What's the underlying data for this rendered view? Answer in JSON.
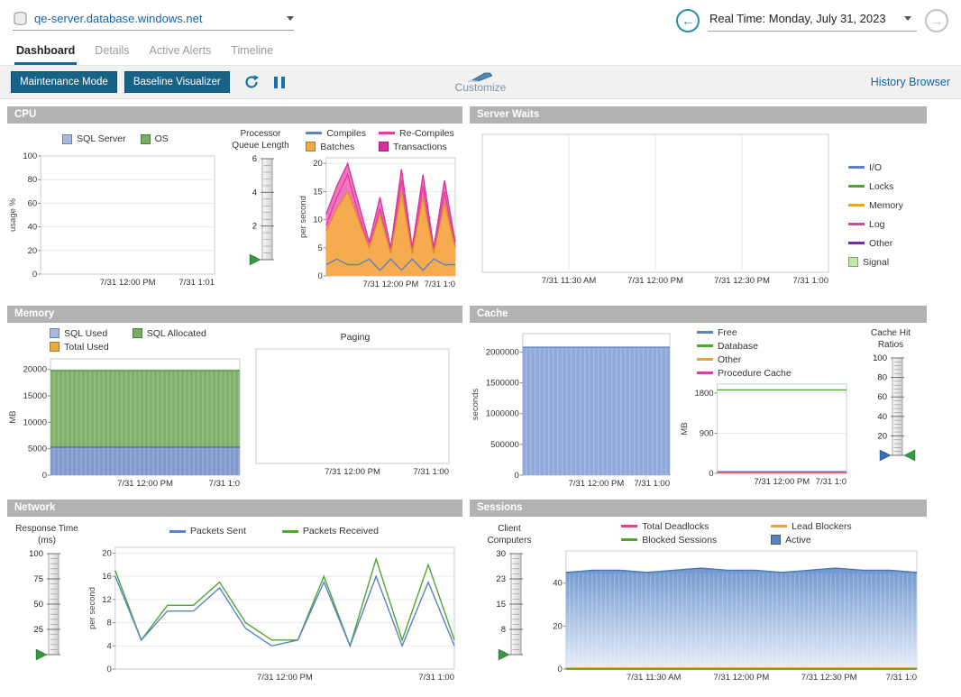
{
  "header": {
    "server_selector": {
      "value": "qe-server.database.windows.net"
    },
    "time_navigation": {
      "back_glyph": "←",
      "label": "Real Time: Monday, July 31, 2023",
      "forward_glyph": "→"
    }
  },
  "icons": {
    "server_selector": "database-icon",
    "back": "arrow-left-circle-icon",
    "forward": "arrow-right-circle-icon",
    "refresh": "refresh-icon",
    "pause": "pause-icon",
    "customize": "marker-pen-icon"
  },
  "tabs": [
    {
      "label": "Dashboard",
      "active": true
    },
    {
      "label": "Details",
      "active": false
    },
    {
      "label": "Active Alerts",
      "active": false
    },
    {
      "label": "Timeline",
      "active": false
    }
  ],
  "toolbar": {
    "maintenance_mode_label": "Maintenance Mode",
    "baseline_visualizer_label": "Baseline Visualizer",
    "customize_label": "Customize",
    "history_browser_label": "History Browser"
  },
  "colors": {
    "accent_blue": "#1465a8",
    "button_bg": "#176287",
    "panel_header_bg": "#b2b2b2"
  },
  "panels": {
    "cpu": {
      "title": "CPU",
      "usage_legend": [
        {
          "label": "SQL Server",
          "swatch": "square",
          "color": "#a9b9dd",
          "border": "#6d7fa8"
        },
        {
          "label": "OS",
          "swatch": "square",
          "color": "#77ad60",
          "border": "#4d7a3a"
        }
      ],
      "usage_chart": {
        "ylabel": "usage %",
        "yticks": [
          0,
          20,
          40,
          60,
          80,
          100
        ],
        "ylim": [
          0,
          100
        ],
        "xlabels": [
          "7/31 12:00 PM",
          "7/31 1:01"
        ],
        "series": []
      },
      "gauge": {
        "title_lines": [
          "Processor",
          "Queue Length"
        ],
        "ticks": [
          0,
          2,
          4,
          6
        ],
        "markers": [
          {
            "color": "#2f9e3f",
            "side": "left",
            "value": 0
          }
        ]
      },
      "throughput_legend": [
        {
          "label": "Compiles",
          "swatch": "line",
          "color": "#5b83c4"
        },
        {
          "label": "Batches",
          "swatch": "square",
          "color": "#f0a83a",
          "border": "#b5791c"
        },
        {
          "label": "Re-Compiles",
          "swatch": "line",
          "color": "#e0409f"
        },
        {
          "label": "Transactions",
          "swatch": "square",
          "color": "#d8309a",
          "border": "#a01e72"
        }
      ],
      "throughput_chart": {
        "ylabel": "per second",
        "yticks": [
          0,
          5,
          10,
          15,
          20
        ],
        "ylim": [
          0,
          21
        ],
        "xlabels": [
          "7/31 12:00 PM",
          "7/31 1:0"
        ],
        "series": [
          {
            "name": "Transactions",
            "type": "area",
            "color": "#d8309a",
            "fill": "#f075bd",
            "values": [
              11,
              16,
              20,
              13,
              6,
              14,
              5,
              19,
              5,
              18,
              5,
              17,
              6
            ]
          },
          {
            "name": "Re-Compiles",
            "type": "line",
            "color": "#e0409f",
            "values": [
              9,
              14,
              18,
              11,
              5,
              12,
              4,
              17,
              4,
              16,
              4,
              15,
              5
            ]
          },
          {
            "name": "Batches",
            "type": "area",
            "color": "#df8f2a",
            "fill": "#f5ab4e",
            "values": [
              8,
              12,
              15,
              10,
              5,
              11,
              4,
              15,
              4,
              14,
              4,
              13,
              5
            ]
          },
          {
            "name": "Compiles",
            "type": "line",
            "color": "#5b83c4",
            "values": [
              2,
              3,
              2,
              2,
              3,
              1,
              3,
              1,
              3,
              1,
              3,
              2,
              2
            ]
          }
        ]
      }
    },
    "server_waits": {
      "title": "Server Waits",
      "chart": {
        "yticks": [],
        "ylim": [
          0,
          1
        ],
        "vgrid": true,
        "xlabels": [
          "7/31 11:30 AM",
          "7/31 12:00 PM",
          "7/31 12:30 PM",
          "7/31 1:00"
        ],
        "series": []
      },
      "legend": [
        {
          "label": "I/O",
          "swatch": "line",
          "color": "#5b83c4"
        },
        {
          "label": "Locks",
          "swatch": "line",
          "color": "#4ea72e"
        },
        {
          "label": "Memory",
          "swatch": "line",
          "color": "#e8a33d"
        },
        {
          "label": "Log",
          "swatch": "line",
          "color": "#e0409f"
        },
        {
          "label": "Other",
          "swatch": "line",
          "color": "#7030a0"
        },
        {
          "label": "Signal",
          "swatch": "square",
          "color": "#c2e8a8",
          "border": "#7aa85c"
        }
      ]
    },
    "memory": {
      "title": "Memory",
      "legend": [
        {
          "label": "SQL Used",
          "swatch": "square",
          "color": "#a9b9dd",
          "border": "#6d7fa8"
        },
        {
          "label": "Total Used",
          "swatch": "square",
          "color": "#f0a83a",
          "border": "#b5791c"
        },
        {
          "label": "SQL Allocated",
          "swatch": "square",
          "color": "#77ad60",
          "border": "#4d7a3a"
        }
      ],
      "usage_chart": {
        "ylabel": "MB",
        "yticks": [
          0,
          5000,
          10000,
          15000,
          20000
        ],
        "ylim": [
          0,
          22000
        ],
        "xlabels": [
          "7/31 12:00 PM",
          "7/31 1:0"
        ],
        "series": [
          {
            "name": "SQL Allocated",
            "type": "area",
            "color": "#5a8f3e",
            "fill": "#7fb069",
            "striped": true,
            "values": [
              19800,
              19800,
              19800,
              19800,
              19800,
              19800,
              19800,
              19800,
              19800
            ]
          },
          {
            "name": "SQL Used",
            "type": "area",
            "color": "#5b6f9e",
            "fill": "#8299cc",
            "striped": true,
            "values": [
              5300,
              5300,
              5300,
              5300,
              5300,
              5300,
              5300,
              5300,
              5300
            ]
          }
        ]
      },
      "paging_title": "Paging",
      "paging_chart": {
        "yticks": [],
        "ylim": [
          0,
          1
        ],
        "xlabels": [
          "7/31 12:00 PM",
          "7/31 1:00"
        ],
        "series": []
      }
    },
    "cache": {
      "title": "Cache",
      "seconds_chart": {
        "ylabel": "seconds",
        "yticks": [
          0,
          500000,
          1000000,
          1500000,
          2000000
        ],
        "ylim": [
          0,
          2300000
        ],
        "xlabels": [
          "7/31 12:00 PM",
          "7/31 1:00"
        ],
        "series": [
          {
            "name": "Cache seconds",
            "type": "area",
            "color": "#5b83c4",
            "fill": "#8fa9d9",
            "striped": true,
            "values": [
              2080000,
              2080000,
              2080000,
              2080000,
              2080000,
              2080000,
              2080000,
              2080000,
              2080000
            ]
          }
        ]
      },
      "mb_legend": [
        {
          "label": "Free",
          "swatch": "line",
          "color": "#5b83c4"
        },
        {
          "label": "Database",
          "swatch": "line",
          "color": "#4ea72e"
        },
        {
          "label": "Other",
          "swatch": "line",
          "color": "#e8a33d"
        },
        {
          "label": "Procedure Cache",
          "swatch": "line",
          "color": "#e0409f"
        }
      ],
      "mb_chart": {
        "ylabel": "MB",
        "yticks": [
          0,
          900,
          1800
        ],
        "ylim": [
          0,
          2000
        ],
        "xlabels": [
          "7/31 12:00 PM",
          "7/31 1:0"
        ],
        "series": [
          {
            "name": "Database",
            "type": "line",
            "color": "#4ea72e",
            "values": [
              1870,
              1870,
              1870,
              1870,
              1870,
              1870,
              1870
            ]
          },
          {
            "name": "Free",
            "type": "line",
            "color": "#5b83c4",
            "values": [
              40,
              40,
              40,
              40,
              40,
              40,
              40
            ]
          },
          {
            "name": "Other",
            "type": "line",
            "color": "#e8a33d",
            "values": [
              10,
              10,
              10,
              10,
              10,
              10,
              10
            ]
          },
          {
            "name": "Procedure Cache",
            "type": "line",
            "color": "#e0409f",
            "values": [
              25,
              25,
              25,
              25,
              25,
              25,
              25
            ]
          }
        ]
      },
      "gauge": {
        "title_lines": [
          "Cache Hit",
          "Ratios"
        ],
        "ticks": [
          0,
          20,
          40,
          60,
          80,
          100
        ],
        "markers": [
          {
            "color": "#2e6fbf",
            "side": "left",
            "value": 0
          },
          {
            "color": "#2f9e3f",
            "side": "right",
            "value": 0
          }
        ]
      }
    },
    "network": {
      "title": "Network",
      "gauge": {
        "title_lines": [
          "Response Time",
          "(ms)"
        ],
        "ticks": [
          0,
          25,
          50,
          75,
          100
        ],
        "markers": [
          {
            "color": "#2f9e3f",
            "side": "left",
            "value": 0
          }
        ]
      },
      "legend": [
        {
          "label": "Packets Sent",
          "swatch": "line",
          "color": "#5b83c4"
        },
        {
          "label": "Packets Received",
          "swatch": "line",
          "color": "#4ea72e"
        }
      ],
      "chart": {
        "ylabel": "per second",
        "yticks": [
          0,
          4,
          8,
          12,
          16,
          20
        ],
        "ylim": [
          0,
          21
        ],
        "xlabels": [
          "7/31 12:00 PM",
          "7/31 1:00"
        ],
        "series": [
          {
            "name": "Packets Received",
            "type": "line",
            "color": "#4ea72e",
            "values": [
              17,
              5,
              11,
              11,
              15,
              8,
              5,
              5,
              16,
              4,
              19,
              5,
              18,
              5
            ]
          },
          {
            "name": "Packets Sent",
            "type": "line",
            "color": "#5b83c4",
            "values": [
              16,
              5,
              10,
              10,
              14,
              7,
              4,
              5,
              15,
              4,
              16,
              4,
              15,
              4
            ]
          }
        ]
      }
    },
    "sessions": {
      "title": "Sessions",
      "gauge": {
        "title_lines": [
          "Client",
          "Computers"
        ],
        "ticks": [
          0,
          8,
          15,
          23,
          30
        ],
        "markers": [
          {
            "color": "#2f9e3f",
            "side": "left",
            "value": 0
          }
        ]
      },
      "legend": [
        {
          "label": "Total Deadlocks",
          "swatch": "line",
          "color": "#e0409f"
        },
        {
          "label": "Blocked Sessions",
          "swatch": "line",
          "color": "#4ea72e"
        },
        {
          "label": "Lead Blockers",
          "swatch": "line",
          "color": "#e8a33d"
        },
        {
          "label": "Active",
          "swatch": "square",
          "color": "#5b83c4",
          "border": "#3a5a94"
        }
      ],
      "chart": {
        "yticks": [
          0,
          20,
          40
        ],
        "ylim": [
          0,
          55
        ],
        "xlabels": [
          "7/31 11:30 AM",
          "7/31 12:00 PM",
          "7/31 12:30 PM",
          "7/31 1:0"
        ],
        "series": [
          {
            "name": "Active",
            "type": "area",
            "color": "#4a74b4",
            "striped": true,
            "gradient": [
              "#6f97cf",
              "#e6eefa"
            ],
            "values": [
              45,
              46,
              46,
              45,
              46,
              47,
              46,
              46,
              45,
              46,
              47,
              46,
              46,
              45
            ]
          },
          {
            "name": "Lead Blockers",
            "type": "line",
            "color": "#e8a33d",
            "values": [
              0.5,
              0.5,
              0.5,
              0.5,
              0.5,
              0.5,
              0.5,
              0.5,
              0.5,
              0.5,
              0.5,
              0.5,
              0.5,
              0.5
            ]
          },
          {
            "name": "Total Deadlocks",
            "type": "line",
            "color": "#e0409f",
            "values": [
              0,
              0,
              0,
              0,
              0,
              0,
              0,
              0,
              0,
              0,
              0,
              0,
              0,
              0
            ]
          },
          {
            "name": "Blocked Sessions",
            "type": "line",
            "color": "#4ea72e",
            "values": [
              0,
              0,
              0,
              0,
              0,
              0,
              0,
              0,
              0,
              0,
              0,
              0,
              0,
              0
            ]
          }
        ]
      }
    }
  }
}
